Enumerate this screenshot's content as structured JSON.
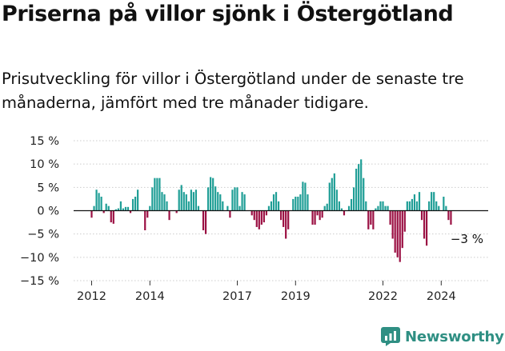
{
  "header": {
    "title": "Priserna på villor sjönk i Östergötland",
    "subtitle": "Prisutveckling för villor i Östergötland under de senaste tre månaderna, jämfört med tre månader tidigare."
  },
  "brand": {
    "name": "Newsworthy",
    "icon": "newsworthy-logo-icon",
    "color": "#2f8f83"
  },
  "colors": {
    "positive": "#1f9e96",
    "negative": "#9b1043",
    "zero_line": "#111111",
    "grid": "#cccccc"
  },
  "chart_data": {
    "type": "bar",
    "title": "",
    "xlabel": "",
    "ylabel": "",
    "ylim": [
      -15,
      15
    ],
    "y_ticks": [
      15,
      10,
      5,
      0,
      -5,
      -10,
      -15
    ],
    "y_tick_labels": [
      "15 %",
      "10 %",
      "5 %",
      "0 %",
      "−5 %",
      "−10 %",
      "−15 %"
    ],
    "x_ticks": [
      2012,
      2014,
      2017,
      2019,
      2022,
      2024
    ],
    "x_tick_labels": [
      "2012",
      "2014",
      "2017",
      "2019",
      "2022",
      "2024"
    ],
    "x_start": 2012.0,
    "x_step": 0.0833333,
    "annotation": {
      "text": "−3 %"
    },
    "values": [
      -1.5,
      1.0,
      4.5,
      3.8,
      3.0,
      -0.5,
      1.5,
      1.0,
      -2.5,
      -2.8,
      0.3,
      0.5,
      2.0,
      0.5,
      0.8,
      0.8,
      -0.5,
      2.5,
      3.0,
      4.5,
      0.0,
      0.0,
      -4.2,
      -1.5,
      1.0,
      5.0,
      7.0,
      7.0,
      7.0,
      4.0,
      3.5,
      2.0,
      -2.0,
      0.0,
      0.0,
      -0.5,
      4.5,
      5.5,
      4.0,
      3.5,
      2.0,
      4.5,
      4.0,
      4.5,
      1.0,
      0.0,
      -4.2,
      -5.0,
      5.0,
      7.2,
      7.0,
      5.2,
      4.0,
      3.5,
      2.0,
      0.0,
      1.0,
      -1.5,
      4.5,
      5.0,
      5.0,
      1.0,
      4.0,
      3.5,
      0.0,
      0.0,
      -1.0,
      -2.0,
      -3.5,
      -4.0,
      -3.0,
      -2.5,
      -1.0,
      1.0,
      2.0,
      3.5,
      4.0,
      2.0,
      -2.0,
      -3.5,
      -6.0,
      -4.0,
      0.0,
      2.5,
      3.0,
      3.0,
      3.5,
      6.2,
      6.0,
      3.5,
      0.0,
      -3.0,
      -3.0,
      -1.0,
      -2.0,
      -1.5,
      1.0,
      1.5,
      6.0,
      7.0,
      8.0,
      4.5,
      2.0,
      0.5,
      -1.0,
      0.0,
      1.0,
      2.5,
      5.0,
      9.0,
      10.0,
      11.0,
      7.0,
      2.0,
      -4.0,
      -3.0,
      -4.0,
      0.5,
      1.0,
      2.0,
      2.0,
      1.0,
      1.0,
      -3.0,
      -6.0,
      -9.0,
      -10.0,
      -11.0,
      -8.0,
      -4.5,
      2.0,
      2.0,
      2.5,
      3.5,
      2.0,
      4.0,
      -2.0,
      -6.0,
      -7.5,
      2.0,
      4.0,
      4.0,
      2.0,
      1.0,
      0.0,
      3.0,
      1.0,
      -2.0,
      -3.0
    ]
  }
}
